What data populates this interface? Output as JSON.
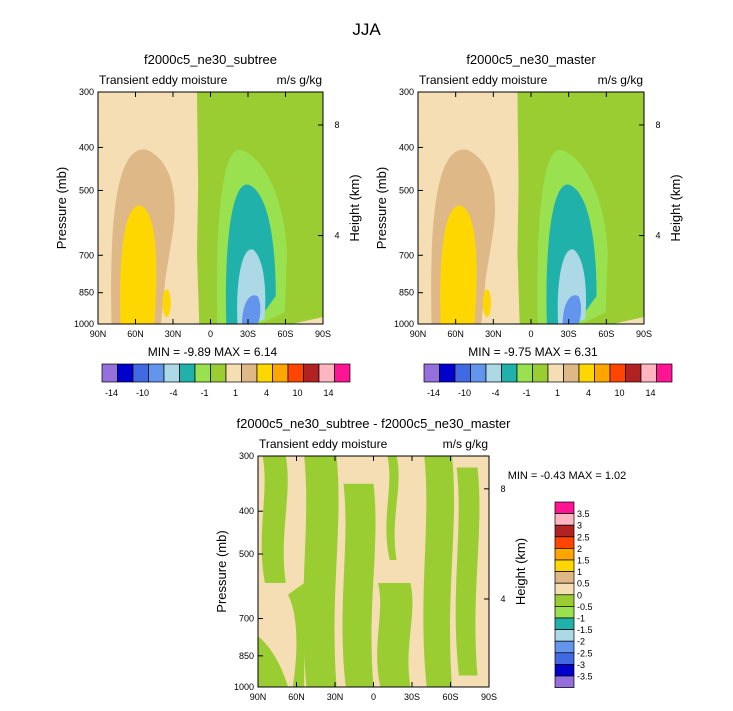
{
  "figure": {
    "title": "JJA",
    "palette": [
      "#9370db",
      "#0000cd",
      "#4169e1",
      "#6495ed",
      "#add8e6",
      "#20b2aa",
      "#99e14f",
      "#9acd32",
      "#f5deb3",
      "#deb887",
      "#ffd700",
      "#ffa500",
      "#ff4500",
      "#b22222",
      "#ffb6c1",
      "#ff1493"
    ]
  },
  "chart_data": [
    {
      "type": "contour",
      "id": "subtree",
      "title": "f2000c5_ne30_subtree",
      "left_label": "Transient eddy moisture",
      "right_label": "m/s g/kg",
      "xlabel": "",
      "ylabel": "Pressure (mb)",
      "ylabel_right": "Height (km)",
      "x_ticks": [
        "90N",
        "60N",
        "30N",
        "0",
        "30S",
        "60S",
        "90S"
      ],
      "y_ticks": [
        "300",
        "400",
        "500",
        "700",
        "850",
        "1000"
      ],
      "height_ticks": [
        "8",
        "4"
      ],
      "stats": "MIN = -9.89  MAX = 6.14",
      "colorbar": {
        "orientation": "horizontal",
        "labels": [
          "-14",
          "-10",
          "-4",
          "-1",
          "1",
          "4",
          "10",
          "14"
        ]
      },
      "ylim": [
        1000,
        300
      ]
    },
    {
      "type": "contour",
      "id": "master",
      "title": "f2000c5_ne30_master",
      "left_label": "Transient eddy moisture",
      "right_label": "m/s g/kg",
      "xlabel": "",
      "ylabel": "Pressure (mb)",
      "ylabel_right": "Height (km)",
      "x_ticks": [
        "90N",
        "60N",
        "30N",
        "0",
        "30S",
        "60S",
        "90S"
      ],
      "y_ticks": [
        "300",
        "400",
        "500",
        "700",
        "850",
        "1000"
      ],
      "height_ticks": [
        "8",
        "4"
      ],
      "stats": "MIN = -9.75  MAX = 6.31",
      "colorbar": {
        "orientation": "horizontal",
        "labels": [
          "-14",
          "-10",
          "-4",
          "-1",
          "1",
          "4",
          "10",
          "14"
        ]
      },
      "ylim": [
        1000,
        300
      ]
    },
    {
      "type": "contour",
      "id": "diff",
      "title": "f2000c5_ne30_subtree - f2000c5_ne30_master",
      "left_label": "Transient eddy moisture",
      "right_label": "m/s g/kg",
      "xlabel": "",
      "ylabel": "Pressure (mb)",
      "ylabel_right": "Height (km)",
      "x_ticks": [
        "90N",
        "60N",
        "30N",
        "0",
        "30S",
        "60S",
        "90S"
      ],
      "y_ticks": [
        "300",
        "400",
        "500",
        "700",
        "850",
        "1000"
      ],
      "height_ticks": [
        "8",
        "4"
      ],
      "stats": "MIN = -0.43  MAX = 1.02",
      "colorbar": {
        "orientation": "vertical",
        "labels": [
          "3.5",
          "3",
          "2.5",
          "2",
          "1.5",
          "1",
          "0.5",
          "0",
          "-0.5",
          "-1",
          "-1.5",
          "-2",
          "-2.5",
          "-3",
          "-3.5"
        ]
      },
      "ylim": [
        1000,
        300
      ]
    }
  ]
}
